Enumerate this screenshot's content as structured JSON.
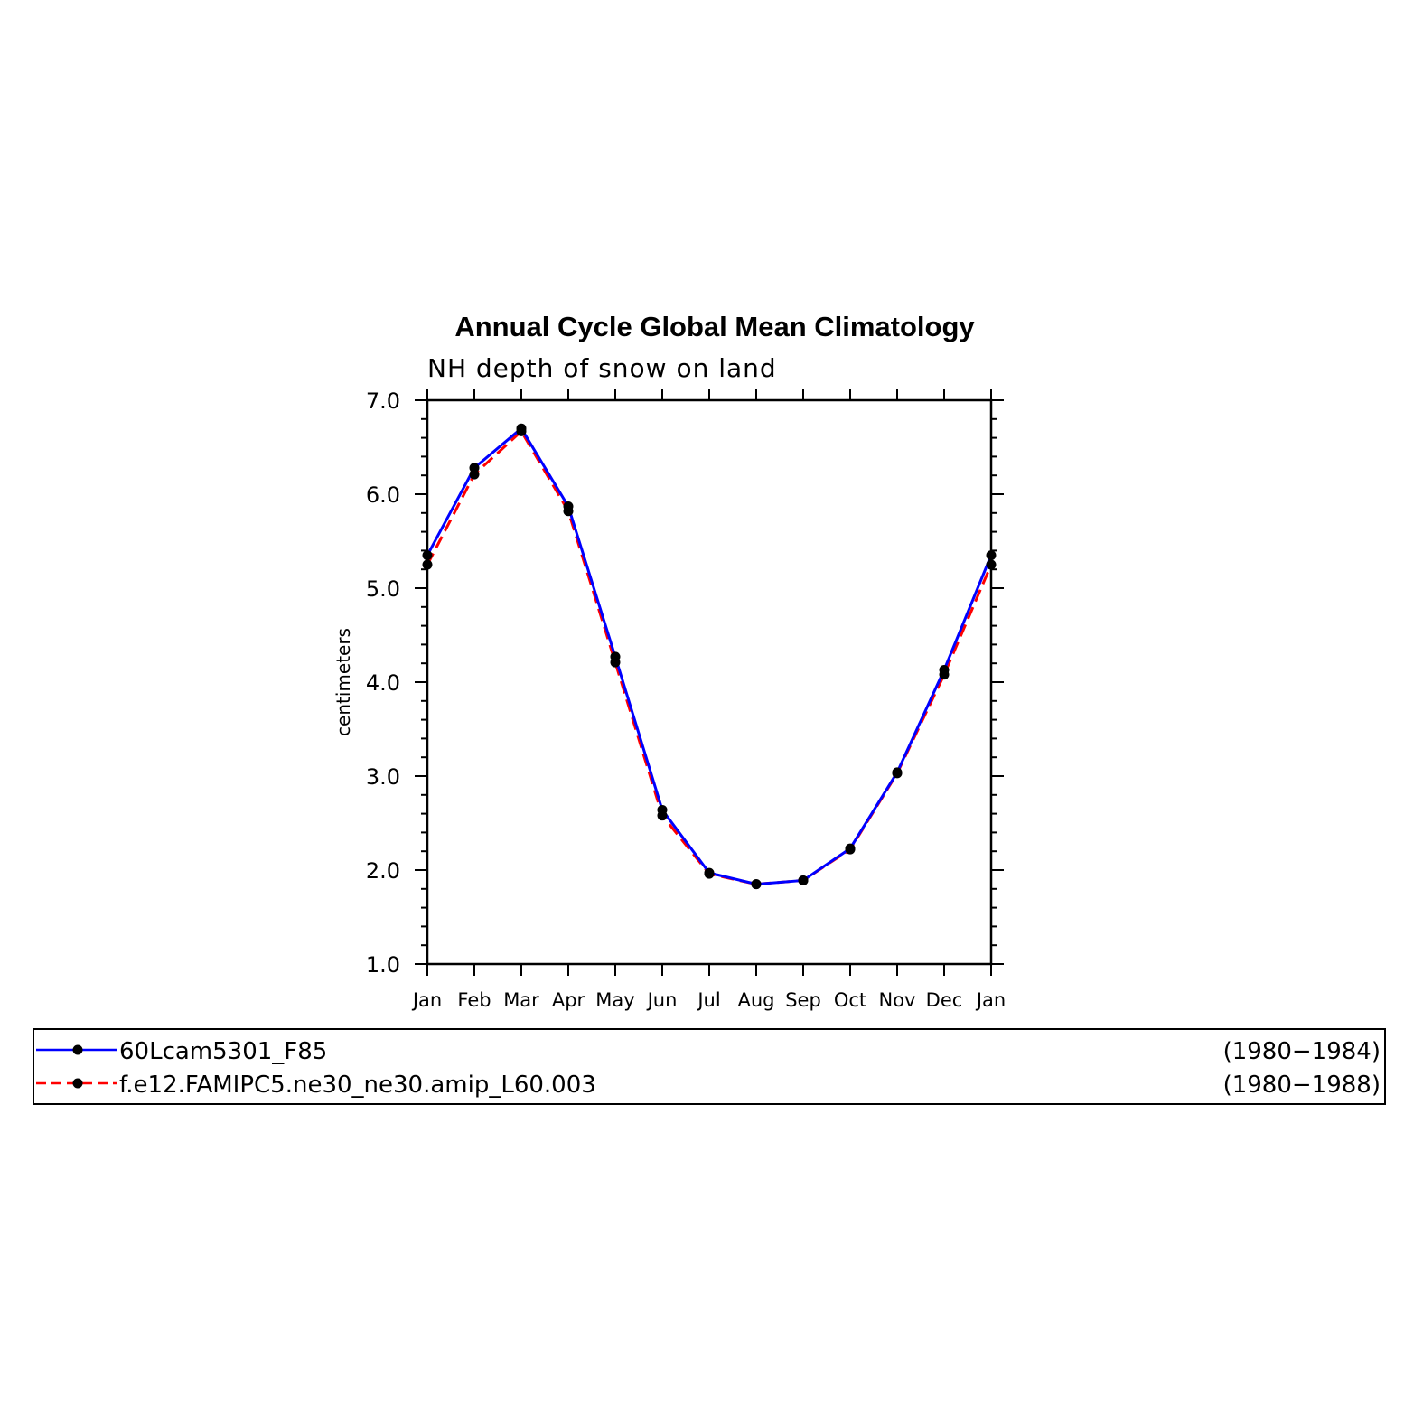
{
  "chart_data": {
    "type": "line",
    "title": "Annual Cycle Global Mean Climatology",
    "subtitle": "NH depth of snow on land",
    "ylabel": "centimeters",
    "ylim": [
      1.0,
      7.0
    ],
    "yticks": [
      "1.0",
      "2.0",
      "3.0",
      "4.0",
      "5.0",
      "6.0",
      "7.0"
    ],
    "categories": [
      "Jan",
      "Feb",
      "Mar",
      "Apr",
      "May",
      "Jun",
      "Jul",
      "Aug",
      "Sep",
      "Oct",
      "Nov",
      "Dec",
      "Jan"
    ],
    "grid": false,
    "legend_position": "bottom",
    "series": [
      {
        "name": "60Lcam5301_F85",
        "period": "(1980−1984)",
        "color": "#0000ff",
        "style": "solid",
        "values": [
          5.35,
          6.28,
          6.7,
          5.87,
          4.27,
          2.64,
          1.97,
          1.85,
          1.89,
          2.23,
          3.04,
          4.13,
          5.35
        ]
      },
      {
        "name": "f.e12.FAMIPC5.ne30_ne30.amip_L60.003",
        "period": "(1980−1988)",
        "color": "#ff0000",
        "style": "dashed",
        "values": [
          5.25,
          6.21,
          6.67,
          5.82,
          4.21,
          2.58,
          1.96,
          1.85,
          1.89,
          2.22,
          3.03,
          4.08,
          5.25
        ]
      }
    ]
  }
}
